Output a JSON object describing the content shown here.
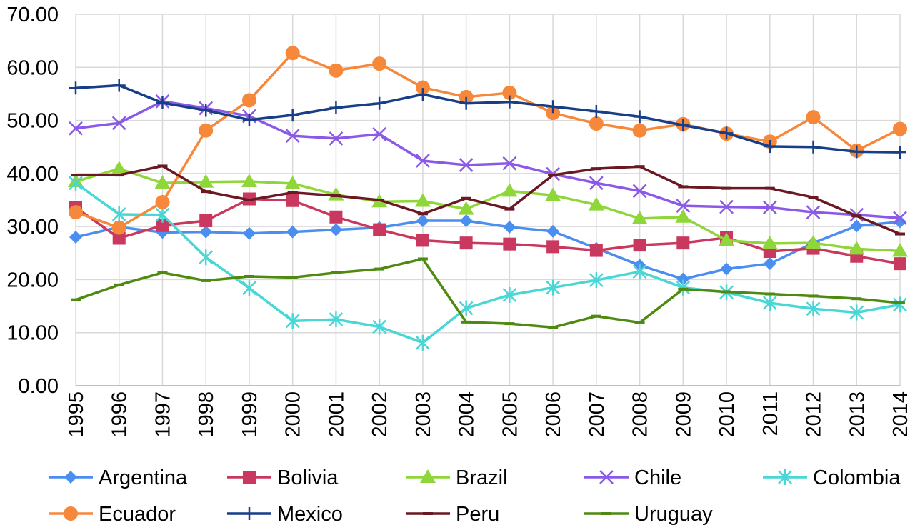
{
  "chart_data": {
    "type": "line",
    "title": "",
    "xlabel": "",
    "ylabel": "",
    "ylim": [
      0,
      70
    ],
    "yticks": [
      "0.00",
      "10.00",
      "20.00",
      "30.00",
      "40.00",
      "50.00",
      "60.00",
      "70.00"
    ],
    "grid": true,
    "legend_position": "bottom",
    "categories": [
      "1995",
      "1996",
      "1997",
      "1998",
      "1999",
      "2000",
      "2001",
      "2002",
      "2003",
      "2004",
      "2005",
      "2006",
      "2007",
      "2008",
      "2009",
      "2010",
      "2011",
      "2012",
      "2013",
      "2014"
    ],
    "series": [
      {
        "name": "Argentina",
        "color": "#4a8ef0",
        "marker": "diamond",
        "values": [
          28.0,
          29.9,
          28.9,
          29.0,
          28.7,
          29.0,
          29.4,
          29.8,
          31.1,
          31.1,
          29.9,
          29.1,
          25.9,
          22.7,
          20.1,
          22.0,
          23.0,
          26.9,
          30.1,
          30.9
        ]
      },
      {
        "name": "Bolivia",
        "color": "#c9395f",
        "marker": "square",
        "values": [
          33.6,
          27.8,
          30.2,
          31.1,
          35.2,
          34.9,
          31.8,
          29.4,
          27.4,
          26.9,
          26.7,
          26.2,
          25.5,
          26.5,
          26.9,
          27.9,
          25.3,
          25.9,
          24.4,
          23.0
        ]
      },
      {
        "name": "Brazil",
        "color": "#8fd63a",
        "marker": "triangle",
        "values": [
          38.5,
          40.9,
          38.2,
          38.4,
          38.5,
          38.1,
          36.0,
          34.7,
          34.8,
          33.3,
          36.7,
          35.9,
          34.1,
          31.5,
          31.8,
          27.4,
          26.8,
          26.9,
          25.8,
          25.4
        ]
      },
      {
        "name": "Chile",
        "color": "#8a5ae6",
        "marker": "x",
        "values": [
          48.5,
          49.5,
          53.6,
          52.3,
          50.8,
          47.1,
          46.6,
          47.4,
          42.4,
          41.6,
          41.9,
          39.9,
          38.2,
          36.7,
          33.9,
          33.7,
          33.6,
          32.7,
          32.2,
          31.6
        ]
      },
      {
        "name": "Colombia",
        "color": "#48d6d6",
        "marker": "asterisk",
        "values": [
          38.2,
          32.3,
          32.2,
          24.2,
          18.4,
          12.2,
          12.5,
          11.1,
          8.1,
          14.6,
          17.1,
          18.5,
          19.9,
          21.5,
          18.5,
          17.6,
          15.6,
          14.5,
          13.8,
          15.3
        ]
      },
      {
        "name": "Ecuador",
        "color": "#f5883a",
        "marker": "circle",
        "values": [
          32.7,
          29.8,
          34.6,
          48.1,
          53.8,
          62.7,
          59.4,
          60.7,
          56.2,
          54.4,
          55.2,
          51.4,
          49.4,
          48.1,
          49.3,
          47.5,
          46.0,
          50.6,
          44.3,
          48.4
        ]
      },
      {
        "name": "Mexico",
        "color": "#173e87",
        "marker": "plus",
        "values": [
          56.1,
          56.6,
          53.3,
          51.9,
          50.1,
          51.0,
          52.4,
          53.2,
          54.9,
          53.2,
          53.5,
          52.6,
          51.7,
          50.7,
          49.1,
          47.6,
          45.1,
          45.0,
          44.1,
          44.0
        ]
      },
      {
        "name": "Peru",
        "color": "#6a1822",
        "marker": "dash",
        "values": [
          39.7,
          39.7,
          41.4,
          36.6,
          35.0,
          36.4,
          35.8,
          35.0,
          32.4,
          35.3,
          33.3,
          39.7,
          40.9,
          41.3,
          37.5,
          37.2,
          37.2,
          35.5,
          32.0,
          28.6
        ]
      },
      {
        "name": "Uruguay",
        "color": "#4f8a10",
        "marker": "dash",
        "values": [
          16.2,
          19.0,
          21.3,
          19.8,
          20.6,
          20.4,
          21.3,
          22.0,
          23.9,
          12.0,
          11.7,
          11.0,
          13.1,
          11.9,
          18.2,
          17.7,
          17.3,
          16.9,
          16.4,
          15.6
        ]
      }
    ]
  }
}
